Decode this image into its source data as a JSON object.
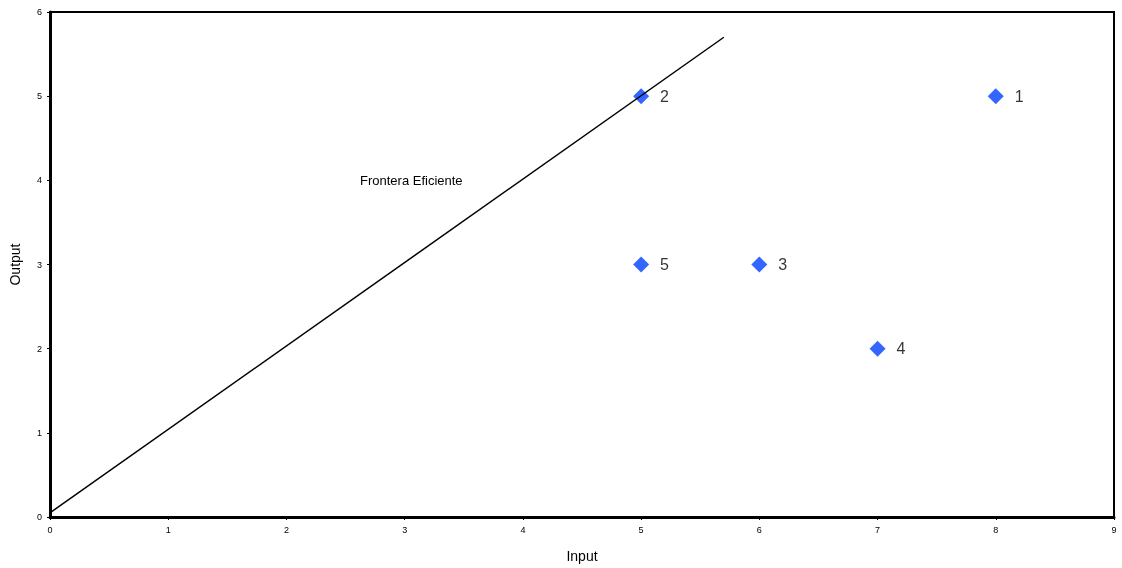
{
  "chart_data": {
    "type": "scatter",
    "xlabel": "Input",
    "ylabel": "Output",
    "xlim": [
      0,
      9
    ],
    "xticks": [
      0,
      1,
      2,
      3,
      4,
      5,
      6,
      7,
      8,
      9
    ],
    "ylim": [
      0,
      6
    ],
    "yticks": [
      0,
      1,
      2,
      3,
      4,
      5,
      6
    ],
    "grid": false,
    "series": [
      {
        "color": "#3366ff",
        "marker": "diamond",
        "x": [
          8,
          5,
          6,
          7,
          5
        ],
        "values": [
          5,
          5,
          3,
          2,
          3
        ]
      },
      {
        "type": "line",
        "color": "#000000",
        "marker": "none",
        "x": [
          0,
          5.7
        ],
        "values": [
          0.05,
          5.7
        ]
      }
    ],
    "annotations": [
      "Frontera Eficiente",
      {
        "text": "1",
        "x": 8,
        "y": 5
      },
      {
        "text": "2",
        "x": 5,
        "y": 5
      },
      {
        "text": "3",
        "x": 6,
        "y": 3
      },
      {
        "text": "4",
        "x": 7,
        "y": 2
      },
      {
        "text": "5",
        "x": 5,
        "y": 3
      }
    ]
  }
}
